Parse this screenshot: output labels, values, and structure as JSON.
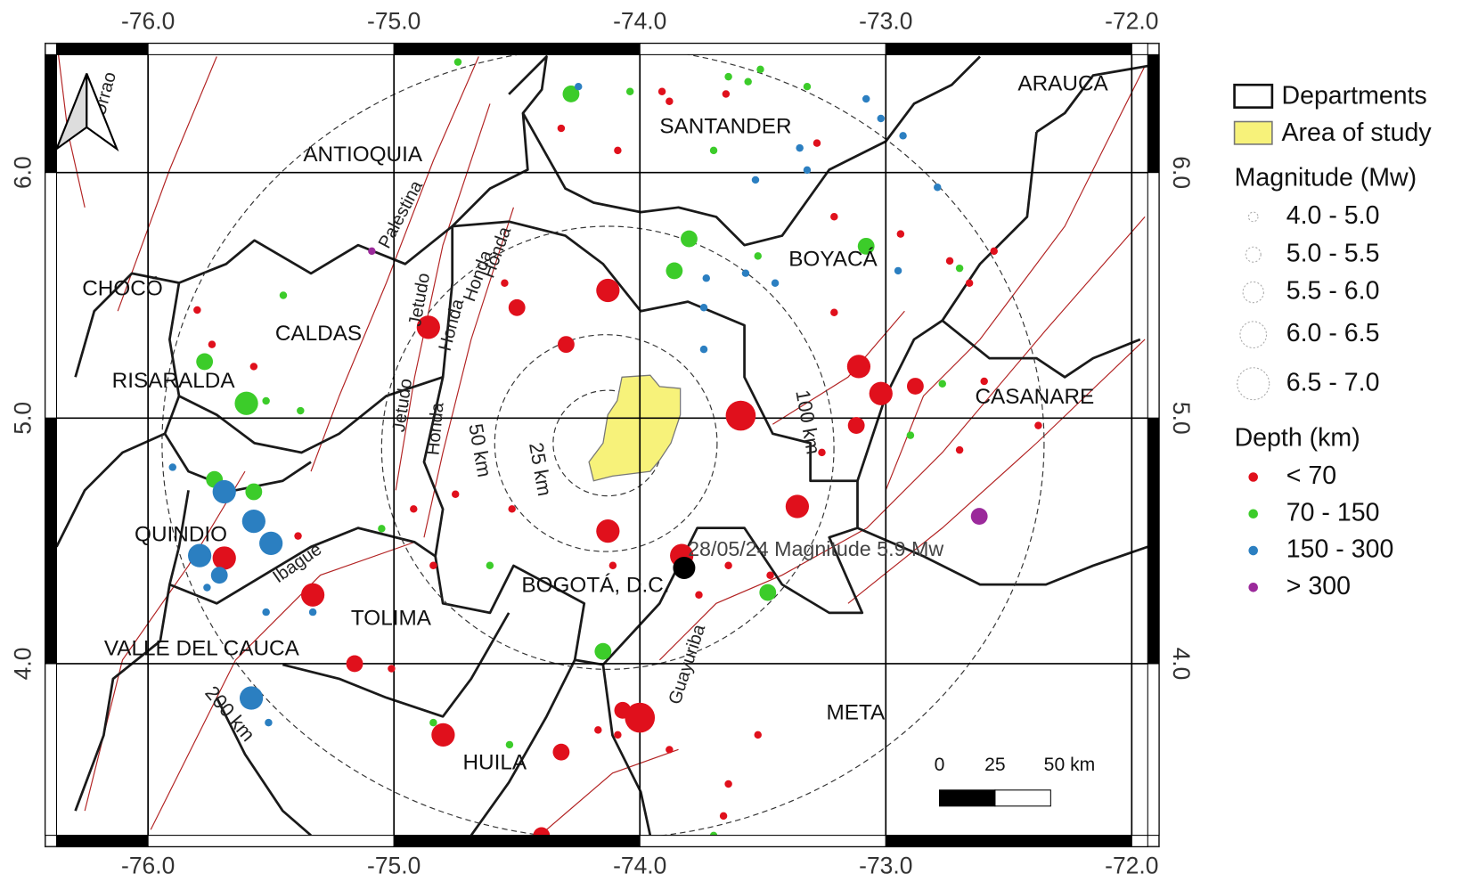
{
  "map": {
    "xlim": [
      -76.418,
      -71.889
    ],
    "ylim": [
      3.255,
      6.526
    ],
    "xticks": [
      {
        "value": -76,
        "label": "-76.0"
      },
      {
        "value": -75,
        "label": "-75.0"
      },
      {
        "value": -74,
        "label": "-74.0"
      },
      {
        "value": -73,
        "label": "-73.0"
      },
      {
        "value": -72,
        "label": "-72.0"
      }
    ],
    "yticks": [
      {
        "value": 6,
        "label": "6.0"
      },
      {
        "value": 5,
        "label": "5.0"
      },
      {
        "value": 4,
        "label": "4.0"
      }
    ],
    "grid": true,
    "departments": [
      "ANTIOQUIA",
      "SANTANDER",
      "ARAUCA",
      "BOYACÁ",
      "CHOCÓ",
      "CALDAS",
      "RISARALDA",
      "CASANARE",
      "QUINDIO",
      "TOLIMA",
      "BOGOTÁ, D.C.",
      "VALLE DEL CAUCA",
      "HUILA",
      "META"
    ],
    "faults": [
      "Urrao",
      "Palestina",
      "Jetudo",
      "Honda",
      "Ibague",
      "Guayuriba"
    ],
    "rings": [
      "25 km",
      "50 km",
      "100 km",
      "200 km"
    ],
    "event": {
      "label": "28/05/24 Magnitude 5.9 Mw",
      "lon": -73.82,
      "lat": 4.39,
      "mw": 5.9
    },
    "scale_bar": [
      "0",
      "25",
      "50 km"
    ],
    "legend": {
      "departments": "Departments",
      "study_area": "Area of study",
      "magnitude_title": "Magnitude (Mw)",
      "magnitude_classes": [
        "4.0 - 5.0",
        "5.0 - 5.5",
        "5.5 - 6.0",
        "6.0 - 6.5",
        "6.5 - 7.0"
      ],
      "depth_title": "Depth (km)"
    },
    "depth_classes": [
      {
        "label": "< 70",
        "color": "#e0101c",
        "events": [
          [
            -74.32,
            6.18,
            4.5
          ],
          [
            -74.09,
            6.09,
            4.5
          ],
          [
            -73.91,
            6.33,
            4.5
          ],
          [
            -73.88,
            6.29,
            4.5
          ],
          [
            -74.13,
            5.52,
            5.7
          ],
          [
            -74.5,
            5.45,
            5.2
          ],
          [
            -74.3,
            5.3,
            5.2
          ],
          [
            -74.86,
            5.37,
            5.7
          ],
          [
            -73.59,
            5.01,
            6.2
          ],
          [
            -73.36,
            4.64,
            5.7
          ],
          [
            -74.13,
            4.54,
            5.7
          ],
          [
            -73.83,
            4.44,
            5.7
          ],
          [
            -74.0,
            3.78,
            6.2
          ],
          [
            -74.8,
            3.71,
            5.7
          ],
          [
            -75.33,
            4.28,
            5.7
          ],
          [
            -75.69,
            4.43,
            5.7
          ],
          [
            -75.16,
            4.0,
            5.2
          ],
          [
            -74.32,
            3.64,
            5.2
          ],
          [
            -74.07,
            3.81,
            5.2
          ],
          [
            -74.4,
            3.3,
            5.2
          ],
          [
            -73.02,
            5.1,
            5.7
          ],
          [
            -73.11,
            5.21,
            5.7
          ],
          [
            -73.12,
            4.97,
            5.2
          ],
          [
            -72.88,
            5.13,
            5.2
          ],
          [
            -74.55,
            5.55,
            4.5
          ],
          [
            -75.8,
            5.44,
            4.5
          ],
          [
            -75.57,
            5.21,
            4.5
          ],
          [
            -75.74,
            5.3,
            4.5
          ],
          [
            -73.21,
            5.43,
            4.5
          ],
          [
            -72.94,
            5.75,
            4.5
          ],
          [
            -72.56,
            5.68,
            4.5
          ],
          [
            -72.66,
            5.55,
            4.5
          ],
          [
            -72.38,
            4.97,
            4.5
          ],
          [
            -72.6,
            5.15,
            4.5
          ],
          [
            -72.7,
            4.87,
            4.5
          ],
          [
            -73.26,
            4.86,
            4.5
          ],
          [
            -74.52,
            4.63,
            4.5
          ],
          [
            -74.92,
            4.63,
            4.5
          ],
          [
            -74.75,
            4.69,
            4.5
          ],
          [
            -74.84,
            4.4,
            4.5
          ],
          [
            -75.39,
            4.52,
            4.5
          ],
          [
            -75.01,
            3.98,
            4.5
          ],
          [
            -73.52,
            3.71,
            4.5
          ],
          [
            -73.64,
            3.51,
            4.5
          ],
          [
            -73.66,
            3.38,
            4.5
          ],
          [
            -74.17,
            3.73,
            4.5
          ],
          [
            -74.09,
            3.71,
            4.5
          ],
          [
            -73.88,
            3.65,
            4.5
          ],
          [
            -74.11,
            4.4,
            4.5
          ],
          [
            -73.64,
            4.4,
            4.5
          ],
          [
            -73.47,
            4.36,
            4.5
          ],
          [
            -73.76,
            4.28,
            4.5
          ],
          [
            -73.21,
            5.82,
            4.5
          ],
          [
            -72.74,
            5.64,
            4.5
          ],
          [
            -73.65,
            6.32,
            4.5
          ],
          [
            -73.28,
            6.12,
            4.5
          ]
        ]
      },
      {
        "label": "70 - 150",
        "color": "#3ccc2a",
        "events": [
          [
            -74.28,
            6.32,
            5.2
          ],
          [
            -74.74,
            6.45,
            4.5
          ],
          [
            -74.04,
            6.33,
            4.5
          ],
          [
            -73.64,
            6.39,
            4.5
          ],
          [
            -73.56,
            6.37,
            4.5
          ],
          [
            -73.32,
            6.35,
            4.5
          ],
          [
            -73.51,
            6.42,
            4.5
          ],
          [
            -73.8,
            5.73,
            5.2
          ],
          [
            -73.86,
            5.6,
            5.2
          ],
          [
            -73.08,
            5.7,
            5.2
          ],
          [
            -75.6,
            5.06,
            5.7
          ],
          [
            -75.77,
            5.23,
            5.2
          ],
          [
            -75.57,
            4.7,
            5.2
          ],
          [
            -75.73,
            4.75,
            5.2
          ],
          [
            -74.15,
            4.05,
            5.2
          ],
          [
            -73.48,
            4.29,
            5.2
          ],
          [
            -74.61,
            4.4,
            4.5
          ],
          [
            -73.52,
            5.66,
            4.5
          ],
          [
            -73.7,
            6.09,
            4.5
          ],
          [
            -72.7,
            5.61,
            4.5
          ],
          [
            -75.38,
            5.03,
            4.5
          ],
          [
            -75.52,
            5.07,
            4.5
          ],
          [
            -75.45,
            5.5,
            4.5
          ],
          [
            -74.84,
            3.76,
            4.5
          ],
          [
            -73.7,
            3.3,
            4.5
          ],
          [
            -74.53,
            3.67,
            4.5
          ],
          [
            -72.9,
            4.93,
            4.5
          ],
          [
            -72.77,
            5.14,
            4.5
          ],
          [
            -75.05,
            4.55,
            4.5
          ]
        ]
      },
      {
        "label": "150 - 300",
        "color": "#2b7fc1",
        "events": [
          [
            -75.69,
            4.7,
            5.7
          ],
          [
            -75.57,
            4.58,
            5.7
          ],
          [
            -75.5,
            4.49,
            5.7
          ],
          [
            -75.79,
            4.44,
            5.7
          ],
          [
            -75.71,
            4.36,
            5.2
          ],
          [
            -75.58,
            3.86,
            5.7
          ],
          [
            -75.33,
            4.21,
            4.5
          ],
          [
            -75.52,
            4.21,
            4.5
          ],
          [
            -75.76,
            4.31,
            4.5
          ],
          [
            -74.25,
            6.35,
            4.5
          ],
          [
            -73.08,
            6.3,
            4.5
          ],
          [
            -73.02,
            6.22,
            4.5
          ],
          [
            -72.93,
            6.15,
            4.5
          ],
          [
            -73.35,
            6.1,
            4.5
          ],
          [
            -73.32,
            6.01,
            4.5
          ],
          [
            -73.53,
            5.97,
            4.5
          ],
          [
            -72.79,
            5.94,
            4.5
          ],
          [
            -73.73,
            5.57,
            4.5
          ],
          [
            -73.57,
            5.59,
            4.5
          ],
          [
            -73.45,
            5.55,
            4.5
          ],
          [
            -73.74,
            5.45,
            4.5
          ],
          [
            -73.74,
            5.28,
            4.5
          ],
          [
            -72.95,
            5.6,
            4.5
          ],
          [
            -75.51,
            3.76,
            4.5
          ],
          [
            -75.9,
            4.8,
            4.5
          ]
        ]
      },
      {
        "label": "> 300",
        "color": "#9b2a9b",
        "events": [
          [
            -72.62,
            4.6,
            5.2
          ],
          [
            -75.09,
            5.68,
            4.5
          ]
        ]
      }
    ]
  }
}
